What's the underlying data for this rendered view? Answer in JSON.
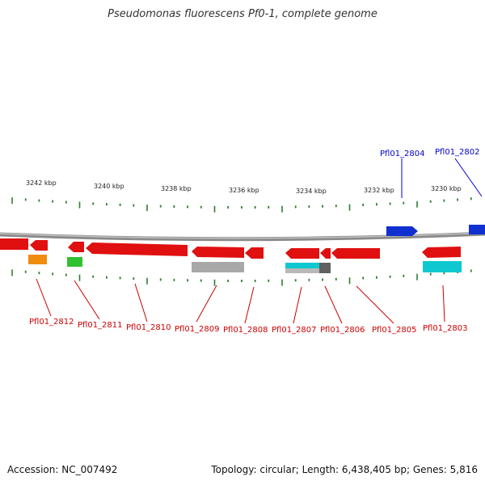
{
  "title": "Pseudomonas fluorescens Pf0-1, complete genome",
  "footer": {
    "accession": "Accession: NC_007492",
    "summary": "Topology: circular; Length: 6,438,405 bp; Genes: 5,816"
  },
  "colors": {
    "backbone": "#8a8a8a",
    "tick": "#2e7d32",
    "gene_red": "#e01010",
    "gene_blue": "#1030d0",
    "label_red": "#cc0000",
    "label_blue": "#0000cc",
    "cog_orange": "#f08c10",
    "cog_green": "#30c030",
    "cog_gray": "#a8a8a8",
    "cog_cyan": "#10c8d0",
    "cog_darkgray": "#606060"
  },
  "kbp_labels": [
    "3242 kbp",
    "3240 kbp",
    "3238 kbp",
    "3236 kbp",
    "3234 kbp",
    "3232 kbp",
    "3230 kbp"
  ],
  "gene_labels": {
    "top": [
      "Pfl01_2804",
      "Pfl01_2802"
    ],
    "bottom": [
      "Pfl01_2812",
      "Pfl01_2811",
      "Pfl01_2810",
      "Pfl01_2809",
      "Pfl01_2808",
      "Pfl01_2807",
      "Pfl01_2806",
      "Pfl01_2805",
      "Pfl01_2803"
    ]
  }
}
